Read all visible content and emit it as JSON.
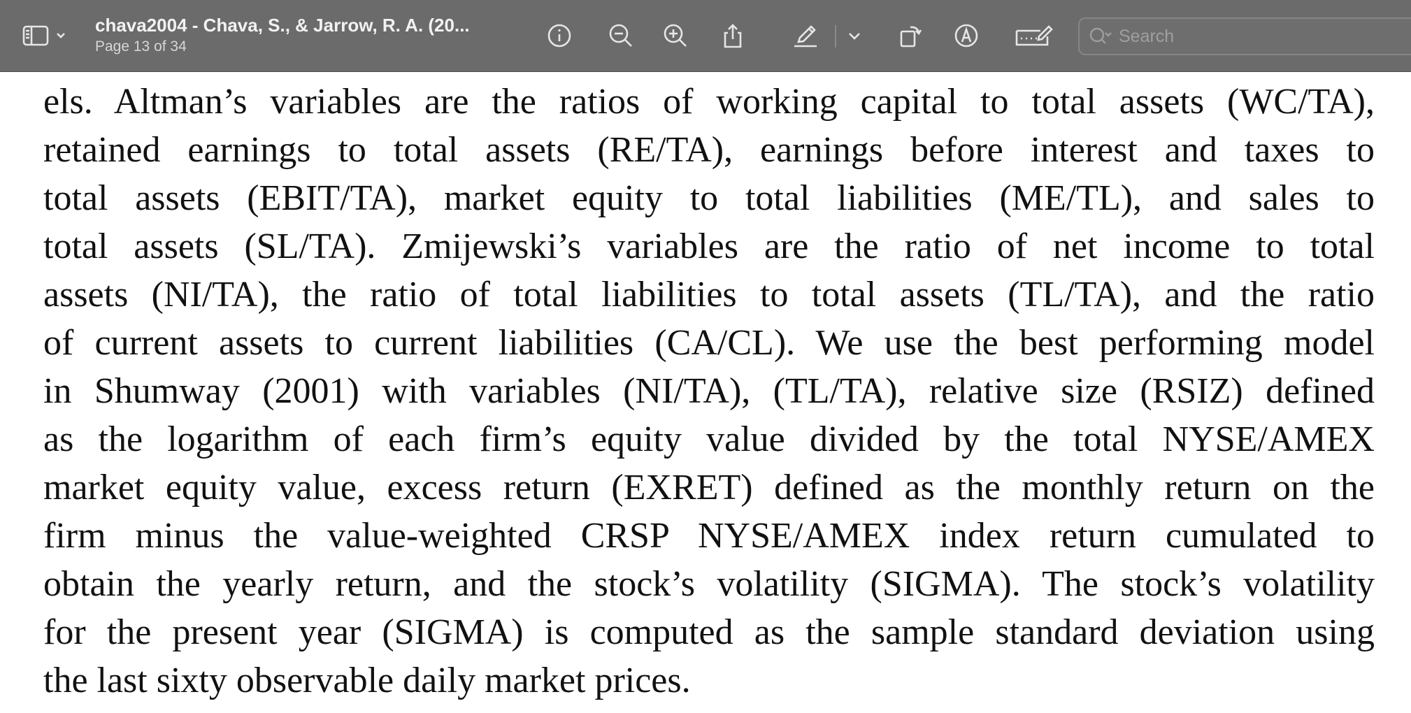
{
  "toolbar": {
    "title": "chava2004 - Chava, S., & Jarrow, R. A. (20...",
    "page_indicator": "Page 13 of 34",
    "search_placeholder": "Search"
  },
  "document": {
    "paragraph_lines": [
      "els. Altman’s variables are the ratios of working capital to total assets (WC/TA),",
      "retained earnings to total assets (RE/TA), earnings before interest and taxes to",
      "total assets (EBIT/TA), market equity to total liabilities (ME/TL), and sales to",
      "total assets (SL/TA). Zmijewski’s variables are the ratio of net income to total",
      "assets (NI/TA), the ratio of total liabilities to total assets (TL/TA), and the ratio",
      "of current assets to current liabilities (CA/CL). We use the best performing model",
      "in Shumway (2001) with variables (NI/TA), (TL/TA), relative size (RSIZ) defined",
      "as the logarithm of each firm’s equity value divided by the total NYSE/AMEX",
      "market equity value, excess return (EXRET) defined as the monthly return on the",
      "firm minus the value-weighted CRSP NYSE/AMEX index return cumulated to",
      "obtain the yearly return, and the stock’s volatility (SIGMA). The stock’s volatility",
      "for the present year (SIGMA) is computed as the sample standard deviation using",
      "the last sixty observable daily market prices."
    ]
  }
}
